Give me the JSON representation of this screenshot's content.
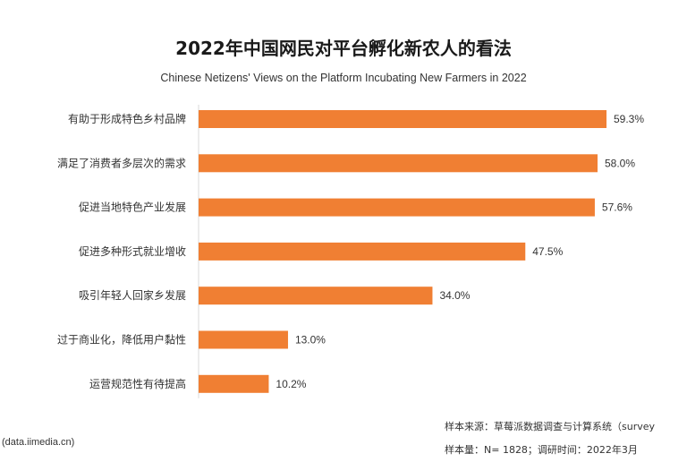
{
  "chart_data": {
    "type": "bar",
    "orientation": "horizontal",
    "title": "2022年中国网民对平台孵化新农人的看法",
    "subtitle": "Chinese Netizens' Views on the Platform Incubating New Farmers in 2022",
    "categories": [
      "有助于形成特色乡村品牌",
      "满足了消费者多层次的需求",
      "促进当地特色产业发展",
      "促进多种形式就业增收",
      "吸引年轻人回家乡发展",
      "过于商业化，降低用户黏性",
      "运营规范性有待提高"
    ],
    "values": [
      59.3,
      58.0,
      57.6,
      47.5,
      34.0,
      13.0,
      10.2
    ],
    "value_labels": [
      "59.3%",
      "58.0%",
      "57.6%",
      "47.5%",
      "34.0%",
      "13.0%",
      "10.2%"
    ],
    "unit": "%",
    "xlim": [
      0,
      59.3
    ],
    "bar_color": "#f07f33",
    "grid": false,
    "legend": "none"
  },
  "footer": {
    "source_site": "(data.iimedia.cn)",
    "sample_source": "样本来源：草莓派数据调查与计算系统（survey",
    "sample_size": "样本量：N= 1828；调研时间：2022年3月"
  }
}
